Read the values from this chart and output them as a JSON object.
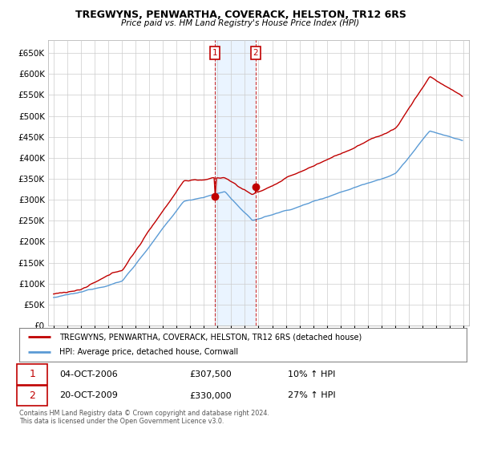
{
  "title": "TREGWYNS, PENWARTHA, COVERACK, HELSTON, TR12 6RS",
  "subtitle": "Price paid vs. HM Land Registry's House Price Index (HPI)",
  "legend_line1": "TREGWYNS, PENWARTHA, COVERACK, HELSTON, TR12 6RS (detached house)",
  "legend_line2": "HPI: Average price, detached house, Cornwall",
  "annotation1_date": "04-OCT-2006",
  "annotation1_price": "£307,500",
  "annotation1_hpi": "10% ↑ HPI",
  "annotation2_date": "20-OCT-2009",
  "annotation2_price": "£330,000",
  "annotation2_hpi": "27% ↑ HPI",
  "footer": "Contains HM Land Registry data © Crown copyright and database right 2024.\nThis data is licensed under the Open Government Licence v3.0.",
  "hpi_color": "#5b9bd5",
  "price_color": "#c00000",
  "annotation_color": "#c00000",
  "shade_color": "#ddeeff",
  "background_color": "#ffffff",
  "grid_color": "#cccccc",
  "ylim": [
    0,
    680000
  ],
  "ytick_values": [
    0,
    50000,
    100000,
    150000,
    200000,
    250000,
    300000,
    350000,
    400000,
    450000,
    500000,
    550000,
    600000,
    650000
  ],
  "sale1_x": 2006.792,
  "sale1_y": 307500,
  "sale2_x": 2009.792,
  "sale2_y": 330000,
  "xlim_left": 1994.6,
  "xlim_right": 2025.4
}
